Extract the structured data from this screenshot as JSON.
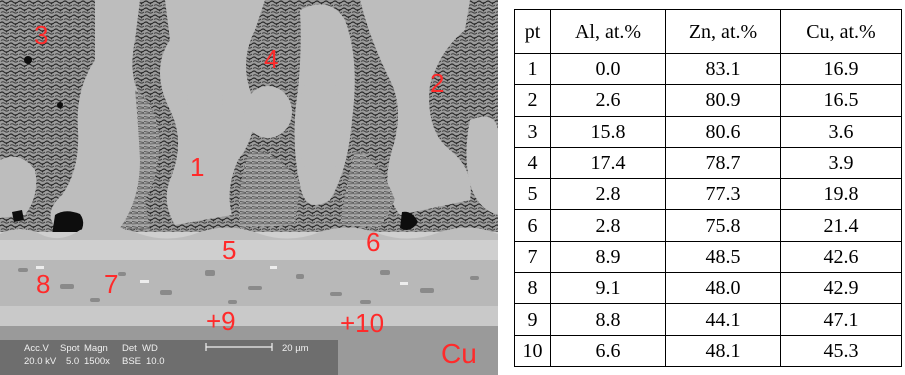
{
  "figure": {
    "image": {
      "point_labels": [
        "3",
        "4",
        "2",
        "1",
        "5",
        "6",
        "8",
        "7",
        "+9",
        "+10"
      ],
      "region_label": "Cu",
      "caption_row1": [
        "Acc.V",
        "Spot",
        "Magn",
        "Det",
        "WD"
      ],
      "caption_row2": [
        "20.0 kV",
        "5.0",
        "1500x",
        "BSE",
        "10.0"
      ],
      "scale_bar_label": "20 µm",
      "label_color": "#ff2a2a"
    },
    "table": {
      "headers": [
        "pt",
        "Al, at.%",
        "Zn, at.%",
        "Cu, at.%"
      ],
      "rows": [
        [
          "1",
          "0.0",
          "83.1",
          "16.9"
        ],
        [
          "2",
          "2.6",
          "80.9",
          "16.5"
        ],
        [
          "3",
          "15.8",
          "80.6",
          "3.6"
        ],
        [
          "4",
          "17.4",
          "78.7",
          "3.9"
        ],
        [
          "5",
          "2.8",
          "77.3",
          "19.8"
        ],
        [
          "6",
          "2.8",
          "75.8",
          "21.4"
        ],
        [
          "7",
          "8.9",
          "48.5",
          "42.6"
        ],
        [
          "8",
          "9.1",
          "48.0",
          "42.9"
        ],
        [
          "9",
          "8.8",
          "44.1",
          "47.1"
        ],
        [
          "10",
          "6.6",
          "48.1",
          "45.3"
        ]
      ]
    }
  }
}
